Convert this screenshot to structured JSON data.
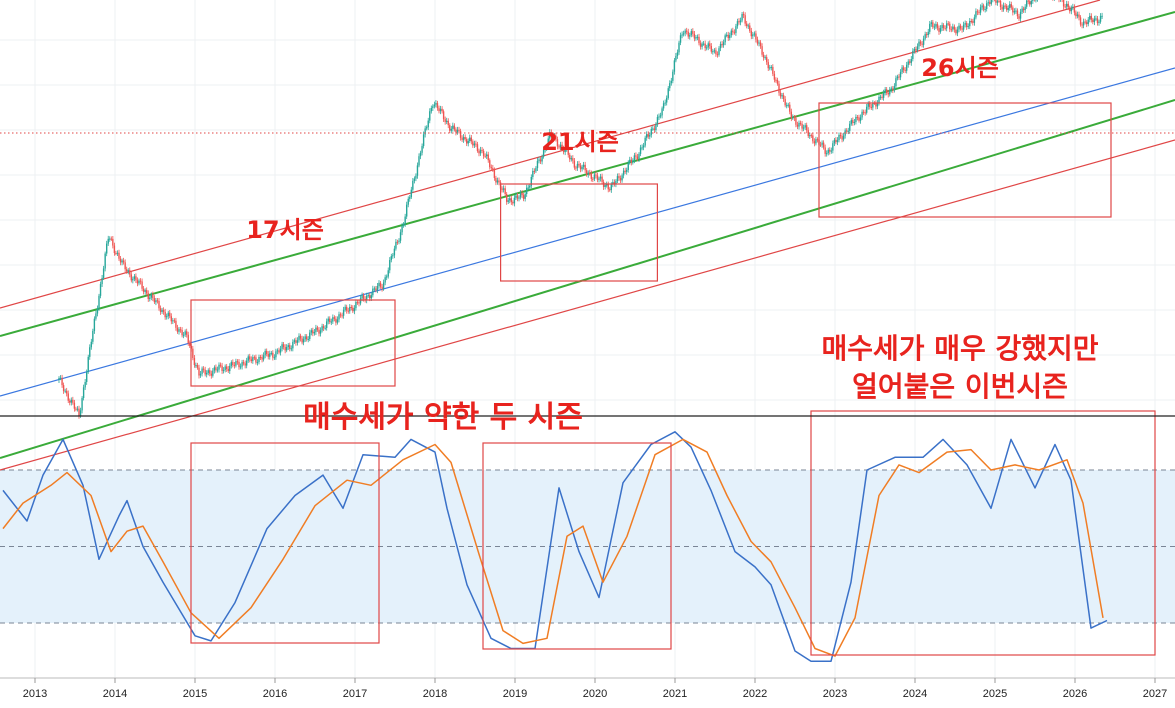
{
  "chart_data": [
    {
      "type": "candlestick",
      "scale": "log",
      "grid": true,
      "x_unit": "year",
      "xlim": [
        2012.6,
        2027.3
      ],
      "series": [
        {
          "values": [
            [
              2013.3,
              1.5
            ],
            [
              2013.55,
              0.9
            ],
            [
              2013.92,
              3.9
            ],
            [
              2014.1,
              3.4
            ],
            [
              2014.5,
              2.8
            ],
            [
              2014.9,
              2.2
            ],
            [
              2015.05,
              1.6
            ],
            [
              2015.5,
              1.75
            ],
            [
              2016.0,
              1.95
            ],
            [
              2016.5,
              2.3
            ],
            [
              2017.0,
              2.75
            ],
            [
              2017.35,
              3.1
            ],
            [
              2017.6,
              4.1
            ],
            [
              2017.8,
              5.2
            ],
            [
              2017.97,
              6.15
            ],
            [
              2018.2,
              5.7
            ],
            [
              2018.6,
              5.3
            ],
            [
              2018.9,
              4.5
            ],
            [
              2019.1,
              4.55
            ],
            [
              2019.45,
              5.6
            ],
            [
              2019.75,
              5.1
            ],
            [
              2020.2,
              4.7
            ],
            [
              2020.55,
              5.3
            ],
            [
              2020.85,
              6.0
            ],
            [
              2021.1,
              7.35
            ],
            [
              2021.5,
              6.95
            ],
            [
              2021.85,
              7.55
            ],
            [
              2022.1,
              6.95
            ],
            [
              2022.45,
              5.9
            ],
            [
              2022.9,
              5.3
            ],
            [
              2023.3,
              5.9
            ],
            [
              2023.7,
              6.35
            ],
            [
              2024.2,
              7.4
            ],
            [
              2024.6,
              7.35
            ],
            [
              2024.95,
              7.85
            ],
            [
              2025.3,
              7.6
            ],
            [
              2025.6,
              8.05
            ],
            [
              2025.9,
              7.75
            ],
            [
              2026.1,
              7.45
            ],
            [
              2026.35,
              7.55
            ]
          ]
        }
      ],
      "channel": {
        "colors": {
          "mid": "#3b78e0",
          "inner": "#3aab3a",
          "outer": "#e04646"
        }
      },
      "boxes": [
        {
          "label": "17시즌",
          "x": [
            2014.95,
            2017.5
          ]
        },
        {
          "label": "21시즌",
          "x": [
            2018.82,
            2020.78
          ]
        },
        {
          "label": "26시즌",
          "x": [
            2022.8,
            2026.45
          ]
        }
      ]
    },
    {
      "type": "line",
      "ylim": [
        0,
        100
      ],
      "bands": {
        "upper": 80,
        "middle": 50,
        "lower": 20,
        "fill": "#e4f1fb"
      },
      "series": [
        {
          "color": "#3a71c8",
          "values": [
            [
              2012.6,
              72
            ],
            [
              2012.9,
              60
            ],
            [
              2013.1,
              78
            ],
            [
              2013.35,
              92
            ],
            [
              2013.6,
              74
            ],
            [
              2013.8,
              45
            ],
            [
              2014.05,
              62
            ],
            [
              2014.15,
              68
            ],
            [
              2014.35,
              50
            ],
            [
              2014.6,
              36
            ],
            [
              2015.0,
              15
            ],
            [
              2015.2,
              13
            ],
            [
              2015.5,
              28
            ],
            [
              2015.9,
              57
            ],
            [
              2016.25,
              70
            ],
            [
              2016.6,
              78
            ],
            [
              2016.85,
              65
            ],
            [
              2017.1,
              86
            ],
            [
              2017.5,
              85
            ],
            [
              2017.7,
              92
            ],
            [
              2018.0,
              87
            ],
            [
              2018.15,
              65
            ],
            [
              2018.4,
              35
            ],
            [
              2018.7,
              14
            ],
            [
              2018.95,
              10
            ],
            [
              2019.25,
              10
            ],
            [
              2019.55,
              73
            ],
            [
              2019.8,
              48
            ],
            [
              2020.05,
              30
            ],
            [
              2020.35,
              75
            ],
            [
              2020.7,
              90
            ],
            [
              2021.0,
              95
            ],
            [
              2021.2,
              89
            ],
            [
              2021.45,
              72
            ],
            [
              2021.75,
              48
            ],
            [
              2022.0,
              42
            ],
            [
              2022.2,
              35
            ],
            [
              2022.5,
              9
            ],
            [
              2022.7,
              5
            ],
            [
              2022.95,
              5
            ],
            [
              2023.2,
              36
            ],
            [
              2023.4,
              80
            ],
            [
              2023.75,
              85
            ],
            [
              2024.1,
              85
            ],
            [
              2024.35,
              92
            ],
            [
              2024.65,
              82
            ],
            [
              2024.95,
              65
            ],
            [
              2025.2,
              92
            ],
            [
              2025.5,
              73
            ],
            [
              2025.75,
              90
            ],
            [
              2025.95,
              76
            ],
            [
              2026.2,
              18
            ],
            [
              2026.4,
              21
            ]
          ]
        },
        {
          "color": "#f07d24",
          "values": [
            [
              2012.6,
              57
            ],
            [
              2012.85,
              67
            ],
            [
              2013.2,
              74
            ],
            [
              2013.4,
              79
            ],
            [
              2013.7,
              70
            ],
            [
              2013.95,
              48
            ],
            [
              2014.15,
              56
            ],
            [
              2014.35,
              58
            ],
            [
              2014.6,
              44
            ],
            [
              2014.95,
              24
            ],
            [
              2015.3,
              14
            ],
            [
              2015.7,
              26
            ],
            [
              2016.1,
              45
            ],
            [
              2016.5,
              66
            ],
            [
              2016.9,
              76
            ],
            [
              2017.2,
              74
            ],
            [
              2017.6,
              84
            ],
            [
              2018.0,
              90
            ],
            [
              2018.2,
              83
            ],
            [
              2018.55,
              47
            ],
            [
              2018.85,
              17
            ],
            [
              2019.1,
              12
            ],
            [
              2019.4,
              14
            ],
            [
              2019.65,
              54
            ],
            [
              2019.85,
              58
            ],
            [
              2020.1,
              36
            ],
            [
              2020.4,
              54
            ],
            [
              2020.75,
              86
            ],
            [
              2021.1,
              92
            ],
            [
              2021.4,
              87
            ],
            [
              2021.65,
              70
            ],
            [
              2021.95,
              52
            ],
            [
              2022.2,
              44
            ],
            [
              2022.5,
              26
            ],
            [
              2022.75,
              10
            ],
            [
              2023.0,
              7
            ],
            [
              2023.25,
              22
            ],
            [
              2023.55,
              70
            ],
            [
              2023.8,
              82
            ],
            [
              2024.05,
              79
            ],
            [
              2024.4,
              87
            ],
            [
              2024.7,
              88
            ],
            [
              2024.95,
              80
            ],
            [
              2025.25,
              82
            ],
            [
              2025.55,
              80
            ],
            [
              2025.9,
              84
            ],
            [
              2026.1,
              67
            ],
            [
              2026.35,
              22
            ]
          ]
        }
      ],
      "boxes": [
        {
          "x": [
            2014.95,
            2017.3
          ]
        },
        {
          "x": [
            2018.6,
            2020.95
          ]
        },
        {
          "x": [
            2022.7,
            2027.0
          ]
        }
      ]
    }
  ],
  "axis": {
    "x_ticks": [
      "2013",
      "2014",
      "2015",
      "2016",
      "2017",
      "2018",
      "2019",
      "2020",
      "2021",
      "2022",
      "2023",
      "2024",
      "2025",
      "2026",
      "2027"
    ]
  },
  "annotations": {
    "season17": "17시즌",
    "season21": "21시즌",
    "season26": "26시즌",
    "weak_seasons": "매수세가 약한 두 시즌",
    "strong_line1": "매수세가 매우 강했지만",
    "strong_line2": "얼어붙은 이번시즌"
  }
}
